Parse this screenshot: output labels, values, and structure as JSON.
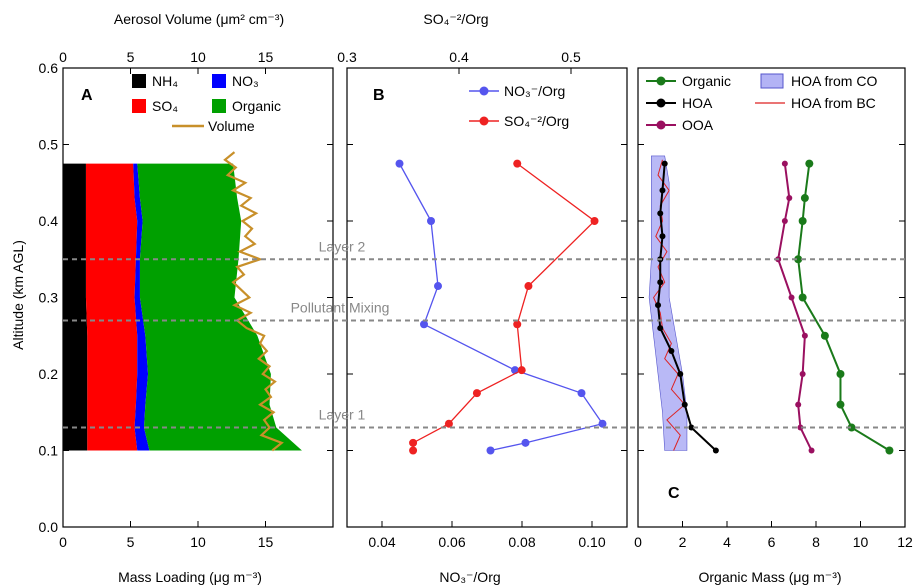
{
  "figure_type": "three-panel vertical profile plot",
  "shared": {
    "ylabel": "Altitude (km AGL)",
    "ylim": [
      0.0,
      0.6
    ],
    "yticks": [
      "0.0",
      "0.1",
      "0.2",
      "0.3",
      "0.4",
      "0.5",
      "0.6"
    ],
    "layer_lines": [
      {
        "label": "Layer 2",
        "y": 0.35
      },
      {
        "label": "Pollutant Mixing",
        "y": 0.27
      },
      {
        "label": "Layer 1",
        "y": 0.13
      }
    ]
  },
  "chart_data": [
    {
      "panel": "A",
      "type": "area",
      "xlabel": "Mass Loading (μg m⁻³)",
      "xlim": [
        0,
        20
      ],
      "xticks": [
        "0",
        "5",
        "10",
        "15"
      ],
      "top_xlabel": "Aerosol Volume (μm² cm⁻³)",
      "top_xlim": [
        0,
        20
      ],
      "top_xticks": [
        "0",
        "5",
        "10",
        "15"
      ],
      "altitude": [
        0.1,
        0.13,
        0.16,
        0.2,
        0.25,
        0.3,
        0.35,
        0.4,
        0.43,
        0.475
      ],
      "series": [
        {
          "name": "NH4",
          "color": "#000000",
          "values": [
            1.8,
            1.8,
            1.8,
            1.8,
            1.8,
            1.7,
            1.7,
            1.7,
            1.7,
            1.7
          ]
        },
        {
          "name": "SO4",
          "color": "#ff0000",
          "values": [
            3.7,
            3.5,
            3.6,
            3.7,
            3.7,
            3.6,
            3.7,
            3.8,
            3.6,
            3.5
          ]
        },
        {
          "name": "NO3",
          "color": "#0000ff",
          "values": [
            0.9,
            0.7,
            0.7,
            0.8,
            0.6,
            0.4,
            0.3,
            0.4,
            0.4,
            0.3
          ]
        },
        {
          "name": "Organic",
          "color": "#00a000",
          "values": [
            11.3,
            9.8,
            9.2,
            9.1,
            8.3,
            7.0,
            7.3,
            7.3,
            7.2,
            7.1
          ]
        }
      ],
      "volume_line": {
        "name": "Volume",
        "color": "#c8902a",
        "altitude": [
          0.1,
          0.11,
          0.12,
          0.13,
          0.14,
          0.15,
          0.16,
          0.17,
          0.18,
          0.19,
          0.2,
          0.21,
          0.22,
          0.23,
          0.24,
          0.25,
          0.26,
          0.27,
          0.28,
          0.29,
          0.3,
          0.31,
          0.32,
          0.33,
          0.34,
          0.35,
          0.36,
          0.37,
          0.38,
          0.39,
          0.4,
          0.41,
          0.42,
          0.43,
          0.44,
          0.45,
          0.46,
          0.47,
          0.48,
          0.49
        ],
        "values": [
          15.5,
          16.2,
          14.7,
          15.3,
          14.9,
          15.6,
          14.6,
          15.4,
          15.0,
          15.7,
          14.8,
          15.3,
          14.5,
          15.1,
          14.6,
          14.9,
          13.6,
          12.9,
          13.9,
          12.7,
          13.8,
          13.2,
          12.6,
          13.4,
          12.9,
          14.6,
          13.1,
          14.2,
          13.5,
          14.0,
          13.3,
          14.3,
          13.2,
          13.9,
          12.6,
          13.5,
          12.2,
          12.8,
          12.0,
          12.7
        ]
      }
    },
    {
      "panel": "B",
      "type": "line",
      "xlabel": "NO₃⁻/Org",
      "xlim": [
        0.03,
        0.11
      ],
      "xticks": [
        "0.04",
        "0.06",
        "0.08",
        "0.10"
      ],
      "top_xlabel": "SO₄⁻²/Org",
      "top_xlim": [
        0.3,
        0.55
      ],
      "top_xticks": [
        "0.3",
        "0.4",
        "0.5"
      ],
      "series": [
        {
          "name": "NO₃⁻/Org",
          "axis": "bottom",
          "color": "#5555ee",
          "altitude": [
            0.475,
            0.4,
            0.315,
            0.265,
            0.205,
            0.175,
            0.135,
            0.11,
            0.1
          ],
          "values": [
            0.045,
            0.054,
            0.056,
            0.052,
            0.078,
            0.097,
            0.103,
            0.081,
            0.071
          ]
        },
        {
          "name": "SO₄⁻²/Org",
          "axis": "top",
          "color": "#ee2222",
          "altitude": [
            0.475,
            0.4,
            0.315,
            0.265,
            0.205,
            0.175,
            0.135,
            0.11,
            0.1
          ],
          "values": [
            0.452,
            0.521,
            0.462,
            0.452,
            0.456,
            0.416,
            0.391,
            0.359,
            0.359
          ]
        }
      ]
    },
    {
      "panel": "C",
      "type": "line",
      "xlabel": "Organic Mass (μg m⁻³)",
      "xlim": [
        0,
        12
      ],
      "xticks": [
        "0",
        "2",
        "4",
        "6",
        "8",
        "10",
        "12"
      ],
      "series": [
        {
          "name": "Organic",
          "color": "#1a7a1a",
          "marker": "dot",
          "altitude": [
            0.1,
            0.13,
            0.16,
            0.2,
            0.25,
            0.3,
            0.35,
            0.4,
            0.43,
            0.475
          ],
          "values": [
            11.3,
            9.6,
            9.1,
            9.1,
            8.4,
            7.4,
            7.2,
            7.4,
            7.5,
            7.7
          ]
        },
        {
          "name": "OOA",
          "color": "#9a1060",
          "marker": "dot",
          "altitude": [
            0.1,
            0.13,
            0.16,
            0.2,
            0.25,
            0.3,
            0.35,
            0.4,
            0.43,
            0.475
          ],
          "values": [
            7.8,
            7.3,
            7.2,
            7.4,
            7.5,
            6.9,
            6.3,
            6.6,
            6.8,
            6.6
          ]
        },
        {
          "name": "HOA",
          "color": "#000000",
          "marker": "dot",
          "altitude": [
            0.1,
            0.13,
            0.16,
            0.2,
            0.23,
            0.26,
            0.29,
            0.32,
            0.35,
            0.38,
            0.41,
            0.44,
            0.475
          ],
          "values": [
            3.5,
            2.4,
            2.1,
            1.9,
            1.5,
            1.0,
            0.9,
            1.0,
            1.0,
            1.1,
            1.0,
            1.1,
            1.2
          ]
        },
        {
          "name": "HOA from CO",
          "color": "#8080ee",
          "type": "band",
          "altitude": [
            0.1,
            0.15,
            0.2,
            0.25,
            0.3,
            0.35,
            0.4,
            0.45,
            0.485
          ],
          "low": [
            1.2,
            1.1,
            0.9,
            0.7,
            0.5,
            0.6,
            0.6,
            0.6,
            0.6
          ],
          "high": [
            2.2,
            2.2,
            2.0,
            1.7,
            1.4,
            1.4,
            1.4,
            1.4,
            1.2
          ]
        },
        {
          "name": "HOA from BC",
          "color": "#dd2222",
          "type": "thin-line",
          "altitude": [
            0.1,
            0.12,
            0.14,
            0.16,
            0.18,
            0.2,
            0.22,
            0.24,
            0.26,
            0.28,
            0.3,
            0.32,
            0.34,
            0.36,
            0.38,
            0.4,
            0.42,
            0.44,
            0.46,
            0.48
          ],
          "values": [
            1.6,
            1.9,
            1.3,
            2.1,
            1.5,
            1.8,
            1.2,
            1.5,
            1.1,
            1.0,
            0.7,
            1.2,
            0.9,
            1.3,
            0.8,
            1.1,
            1.0,
            1.4,
            0.9,
            1.1
          ]
        }
      ]
    }
  ],
  "text": {
    "A": {
      "panel_letter": "A",
      "top_xlabel": "Aerosol Volume (μm² cm⁻³)",
      "xlabel": "Mass Loading (μg m⁻³)",
      "legend": [
        {
          "label": "NH₄",
          "color": "#000000"
        },
        {
          "label": "NO₃",
          "color": "#0000ff"
        },
        {
          "label": "SO₄",
          "color": "#ff0000"
        },
        {
          "label": "Organic",
          "color": "#00a000"
        },
        {
          "label": "Volume",
          "color": "#c8902a"
        }
      ]
    },
    "B": {
      "panel_letter": "B",
      "top_xlabel": "SO₄⁻²/Org",
      "xlabel": "NO₃⁻/Org",
      "legend": [
        {
          "label": "NO₃⁻/Org",
          "color": "#5555ee"
        },
        {
          "label": "SO₄⁻²/Org",
          "color": "#ee2222"
        }
      ]
    },
    "C": {
      "panel_letter": "C",
      "xlabel": "Organic Mass (μg m⁻³)",
      "legend": [
        {
          "label": "Organic",
          "color": "#1a7a1a",
          "style": "dot-line"
        },
        {
          "label": "HOA from CO",
          "color": "#8080ee",
          "style": "patch"
        },
        {
          "label": "HOA",
          "color": "#000000",
          "style": "dot-line"
        },
        {
          "label": "HOA from BC",
          "color": "#dd2222",
          "style": "line"
        },
        {
          "label": "OOA",
          "color": "#9a1060",
          "style": "dot-line"
        }
      ]
    },
    "ylabel": "Altitude (km AGL)"
  }
}
